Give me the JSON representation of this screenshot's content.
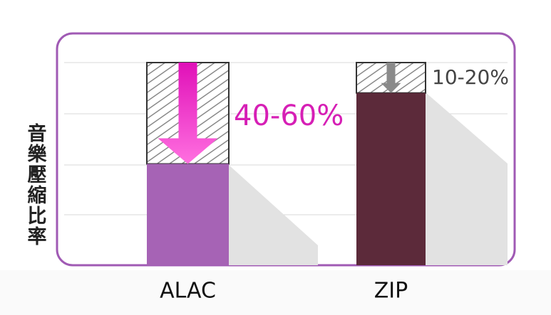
{
  "chart_data": {
    "type": "bar",
    "ylabel": "音樂壓縮比率",
    "categories": [
      "ALAC",
      "ZIP"
    ],
    "values": [
      50,
      85
    ],
    "colors": [
      "#a663b5",
      "#5c2a3a"
    ],
    "ylim": [
      0,
      100
    ],
    "annotations": [
      "40-60%",
      "10-20%"
    ]
  }
}
